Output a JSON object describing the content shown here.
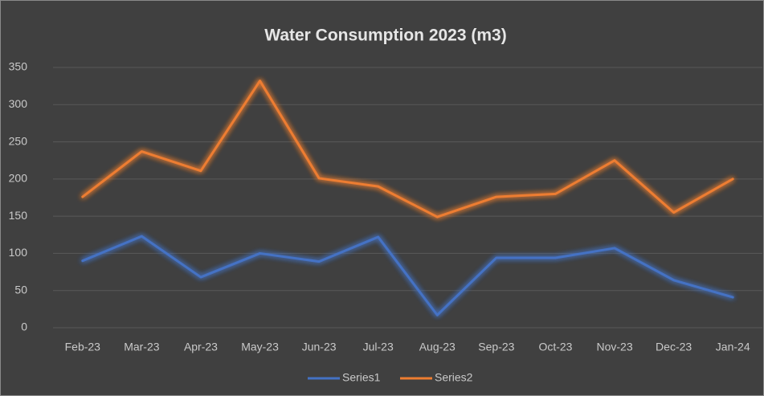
{
  "chart_data": {
    "type": "line",
    "title": "Water Consumption 2023 (m3)",
    "categories": [
      "Feb-23",
      "Mar-23",
      "Apr-23",
      "May-23",
      "Jun-23",
      "Jul-23",
      "Aug-23",
      "Sep-23",
      "Oct-23",
      "Nov-23",
      "Dec-23",
      "Jan-24"
    ],
    "series": [
      {
        "name": "Series1",
        "color": "#4472c4",
        "values": [
          90,
          123,
          68,
          100,
          89,
          122,
          17,
          94,
          94,
          107,
          64,
          41
        ]
      },
      {
        "name": "Series2",
        "color": "#ed7d31",
        "values": [
          176,
          237,
          211,
          332,
          201,
          190,
          149,
          176,
          180,
          225,
          155,
          200
        ]
      }
    ],
    "ylim": [
      0,
      350
    ],
    "yticks": [
      0,
      50,
      100,
      150,
      200,
      250,
      300,
      350
    ],
    "grid": true,
    "legend": "bottom"
  }
}
